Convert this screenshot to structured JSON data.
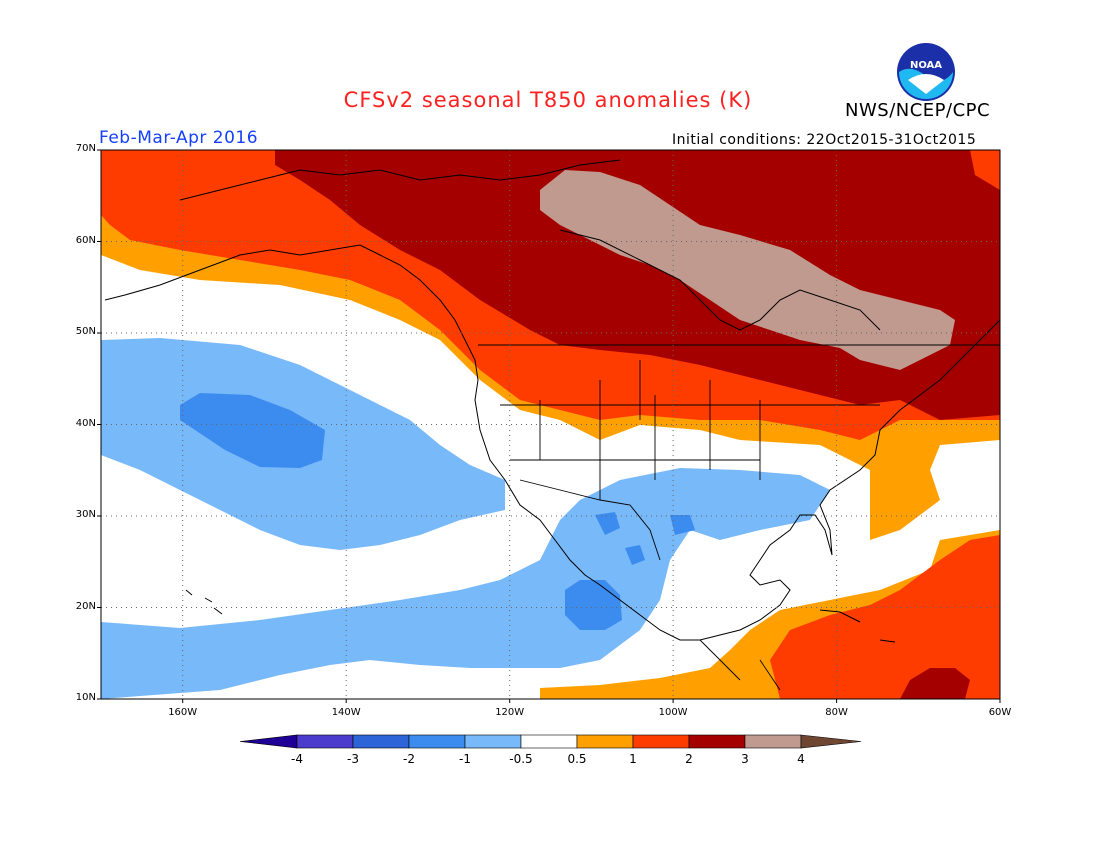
{
  "header": {
    "title": "CFSv2 seasonal T850 anomalies (K)",
    "agency": "NWS/NCEP/CPC",
    "period": "Feb-Mar-Apr 2016",
    "initial_conditions": "Initial conditions: 22Oct2015-31Oct2015",
    "logo_text": "NOAA"
  },
  "map": {
    "lat_labels": [
      "70N",
      "60N",
      "50N",
      "40N",
      "30N",
      "20N",
      "10N"
    ],
    "lon_labels": [
      "160W",
      "140W",
      "120W",
      "100W",
      "80W",
      "60W"
    ],
    "lat_range": [
      10,
      70
    ],
    "lon_range": [
      -170,
      -60
    ],
    "grid": "dotted"
  },
  "colorbar": {
    "labels": [
      "-4",
      "-3",
      "-2",
      "-1",
      "-0.5",
      "0.5",
      "1",
      "2",
      "3",
      "4"
    ],
    "colors": [
      "#1e0096",
      "#4b3ccd",
      "#2d64d7",
      "#3c8cf0",
      "#78b9fa",
      "#ffffff",
      "#ffa000",
      "#ff3c00",
      "#a50000",
      "#c09a8e",
      "#6e4632"
    ]
  }
}
